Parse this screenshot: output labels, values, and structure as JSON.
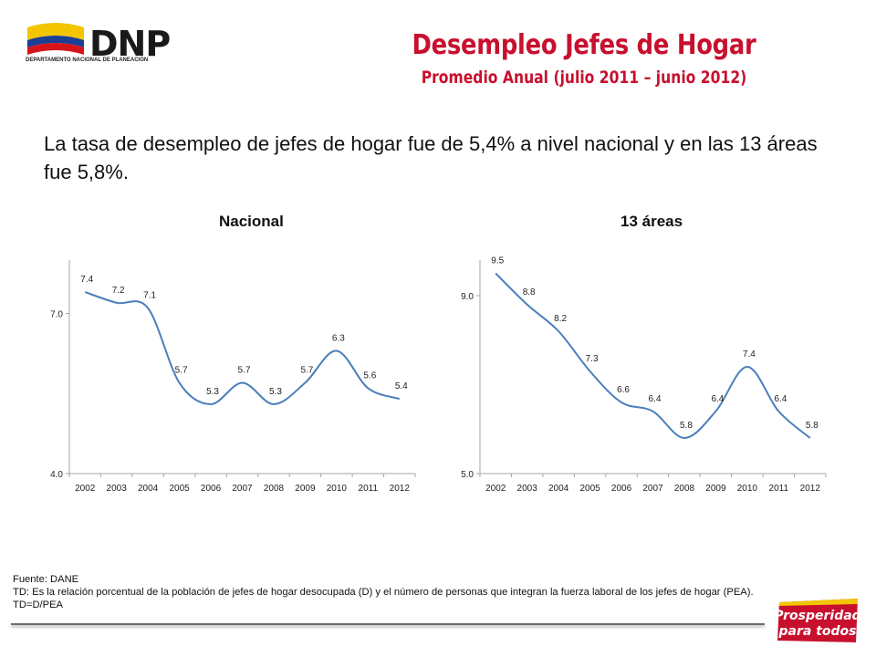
{
  "logo": {
    "text": "DNP",
    "subtext": "DEPARTAMENTO NACIONAL DE PLANEACIÓN"
  },
  "header": {
    "title": "Desempleo Jefes de Hogar",
    "subtitle": "Promedio Anual (julio 2011 – junio 2012)"
  },
  "lead_text": "La tasa de desempleo de jefes de hogar fue de 5,4% a nivel nacional y en las 13 áreas fue 5,8%.",
  "colors": {
    "accent": "#c8102e",
    "line": "#4a7ebb",
    "axis": "#a6a6a6"
  },
  "chart_data": [
    {
      "type": "line",
      "title": "Nacional",
      "x": [
        "2002",
        "2003",
        "2004",
        "2005",
        "2006",
        "2007",
        "2008",
        "2009",
        "2010",
        "2011",
        "2012"
      ],
      "values": [
        7.4,
        7.2,
        7.1,
        5.7,
        5.3,
        5.7,
        5.3,
        5.7,
        6.3,
        5.6,
        5.4
      ],
      "labels": [
        "7.4",
        "7.2",
        "7.1",
        "5.7",
        "5.3",
        "5.7",
        "5.3",
        "5.7",
        "6.3",
        "5.6",
        "5.4"
      ],
      "yticks": [
        "7.0",
        "4.0"
      ],
      "ylim": [
        4.0,
        8.0
      ],
      "grid": false
    },
    {
      "type": "line",
      "title": "13 áreas",
      "x": [
        "2002",
        "2003",
        "2004",
        "2005",
        "2006",
        "2007",
        "2008",
        "2009",
        "2010",
        "2011",
        "2012"
      ],
      "values": [
        9.5,
        8.8,
        8.2,
        7.3,
        6.6,
        6.4,
        5.8,
        6.4,
        7.4,
        6.4,
        5.8
      ],
      "labels": [
        "9.5",
        "8.8",
        "8.2",
        "7.3",
        "6.6",
        "6.4",
        "5.8",
        "6.4",
        "7.4",
        "6.4",
        "5.8"
      ],
      "yticks": [
        "9.0",
        "5.0"
      ],
      "ylim": [
        5.0,
        9.8
      ],
      "grid": false
    }
  ],
  "footer": {
    "source": "Fuente: DANE",
    "note": "TD:  Es la relación porcentual de la población de jefes de hogar desocupada (D) y el número de personas que integran la fuerza laboral de los jefes de hogar (PEA). TD=D/PEA"
  },
  "badge": {
    "line1": "Prosperidad",
    "line2": "para todos"
  }
}
